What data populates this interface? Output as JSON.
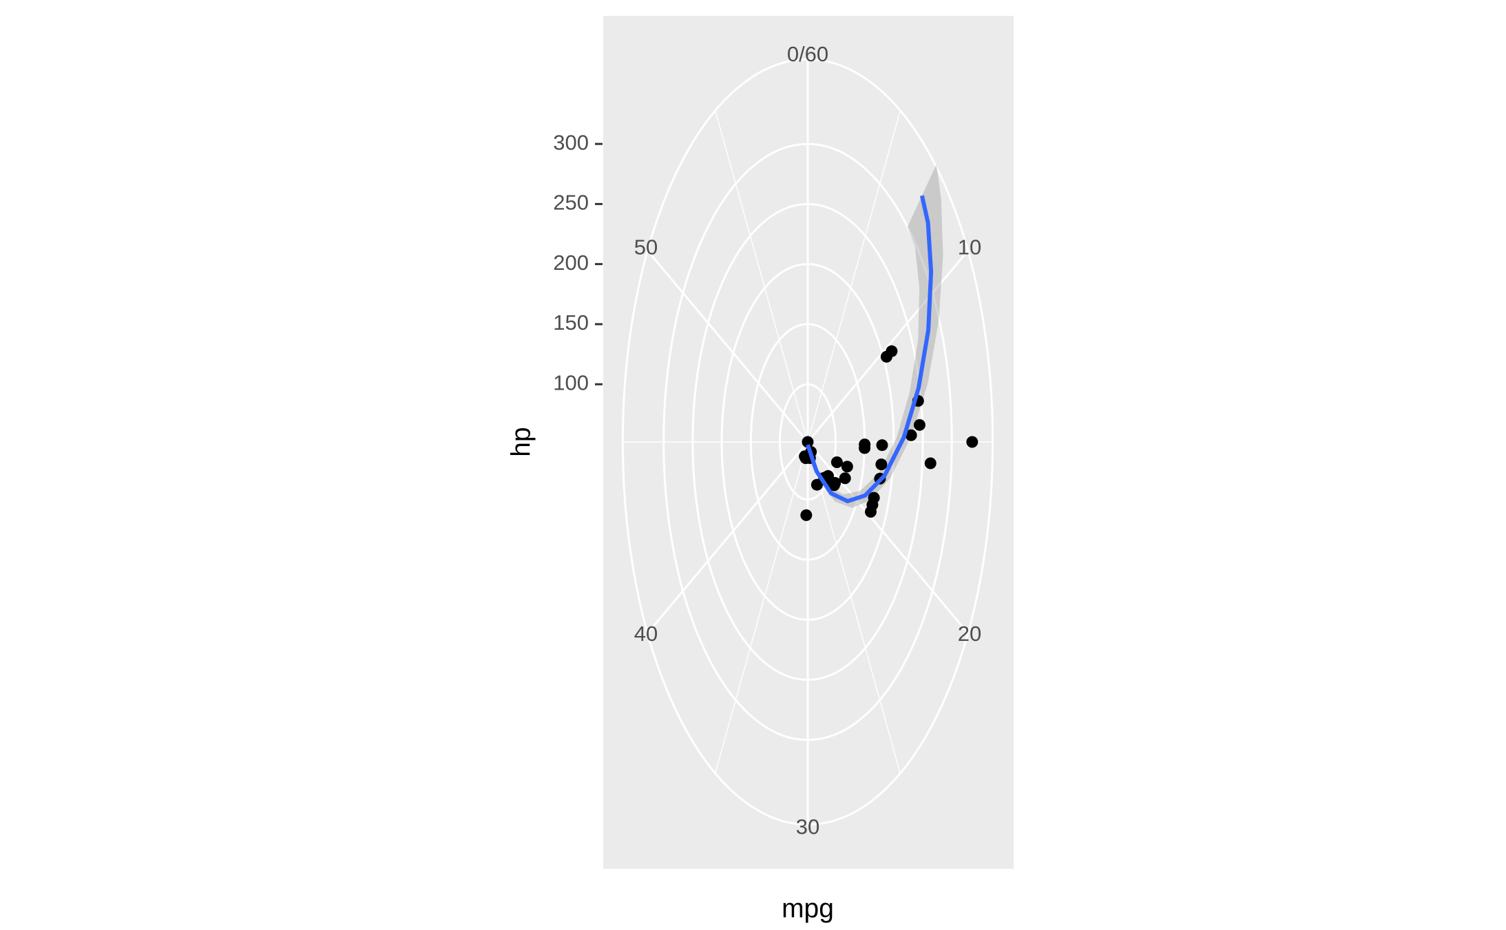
{
  "chart_data": {
    "type": "scatter",
    "coord": "polar",
    "x_label": "mpg",
    "y_label": "hp",
    "xlim": [
      0,
      60
    ],
    "xticks": [
      {
        "value": 0,
        "label": "0/60"
      },
      10,
      20,
      30,
      40,
      50
    ],
    "ylim": [
      52,
      335
    ],
    "yticks": [
      100,
      150,
      200,
      250,
      300
    ],
    "grid": true,
    "color": "#000000",
    "x": [
      21,
      21,
      22.8,
      21.4,
      18.7,
      18.1,
      14.3,
      24.4,
      22.8,
      19.2,
      17.8,
      16.4,
      17.3,
      15.2,
      10.4,
      10.4,
      14.7,
      32.4,
      30.4,
      33.9,
      21.5,
      15.5,
      15.2,
      13.3,
      19.2,
      27.3,
      26,
      30.4,
      15.8,
      19.7,
      15,
      21.4
    ],
    "y": [
      110,
      110,
      93,
      110,
      175,
      105,
      245,
      62,
      95,
      123,
      123,
      180,
      180,
      180,
      205,
      215,
      230,
      66,
      52,
      65,
      97,
      150,
      150,
      245,
      175,
      66,
      91,
      113,
      264,
      175,
      335,
      109
    ],
    "smooth": {
      "color": "#3366FF",
      "fill": "#999999",
      "x": [
        30,
        24.7,
        22.8,
        20.95,
        19.05,
        17,
        14.77,
        12.8,
        10.98,
        9.38,
        8.1,
        7.3
      ],
      "y": [
        54.4,
        80.6,
        110.7,
        136.5,
        160.3,
        187.1,
        217.6,
        247.8,
        279.3,
        307.2,
        327.9,
        336
      ],
      "ymin": [
        44,
        72,
        101,
        127,
        151,
        177,
        205,
        232,
        260,
        283,
        298,
        300
      ],
      "ymax": [
        65,
        89,
        120,
        146,
        170,
        197,
        230,
        264,
        299,
        332,
        358,
        372
      ]
    }
  }
}
